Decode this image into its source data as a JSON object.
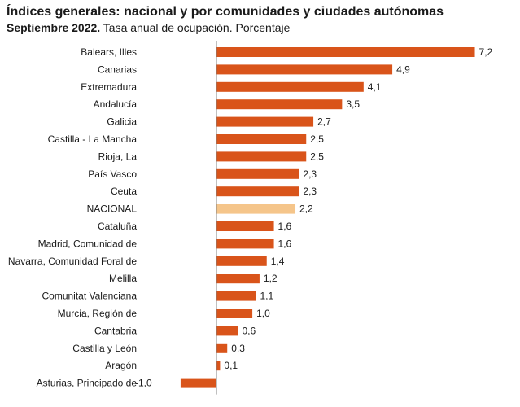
{
  "header": {
    "title": "Índices generales: nacional y por comunidades y ciudades autónomas",
    "subtitle_bold": "Septiembre 2022.",
    "subtitle_rest": " Tasa anual de ocupación. Porcentaje"
  },
  "colors": {
    "bar": "#d9541a",
    "highlight": "#f5c58a",
    "axis": "#808080"
  },
  "chart_data": {
    "type": "bar",
    "orientation": "horizontal",
    "title": "Índices generales: nacional y por comunidades y ciudades autónomas",
    "subtitle": "Septiembre 2022. Tasa anual de ocupación. Porcentaje",
    "highlight_category": "NACIONAL",
    "grid": false,
    "xlim": [
      -1.0,
      7.2
    ],
    "categories": [
      "Balears, Illes",
      "Canarias",
      "Extremadura",
      "Andalucía",
      "Galicia",
      "Castilla - La Mancha",
      "Rioja, La",
      "País Vasco",
      "Ceuta",
      "NACIONAL",
      "Cataluña",
      "Madrid, Comunidad de",
      "Navarra, Comunidad Foral de",
      "Melilla",
      "Comunitat Valenciana",
      "Murcia, Región de",
      "Cantabria",
      "Castilla y León",
      "Aragón",
      "Asturias, Principado de"
    ],
    "values": [
      7.2,
      4.9,
      4.1,
      3.5,
      2.7,
      2.5,
      2.5,
      2.3,
      2.3,
      2.2,
      1.6,
      1.6,
      1.4,
      1.2,
      1.1,
      1.0,
      0.6,
      0.3,
      0.1,
      -1.0
    ],
    "labels": [
      "7,2",
      "4,9",
      "4,1",
      "3,5",
      "2,7",
      "2,5",
      "2,5",
      "2,3",
      "2,3",
      "2,2",
      "1,6",
      "1,6",
      "1,4",
      "1,2",
      "1,1",
      "1,0",
      "0,6",
      "0,3",
      "0,1",
      "-1,0"
    ]
  }
}
